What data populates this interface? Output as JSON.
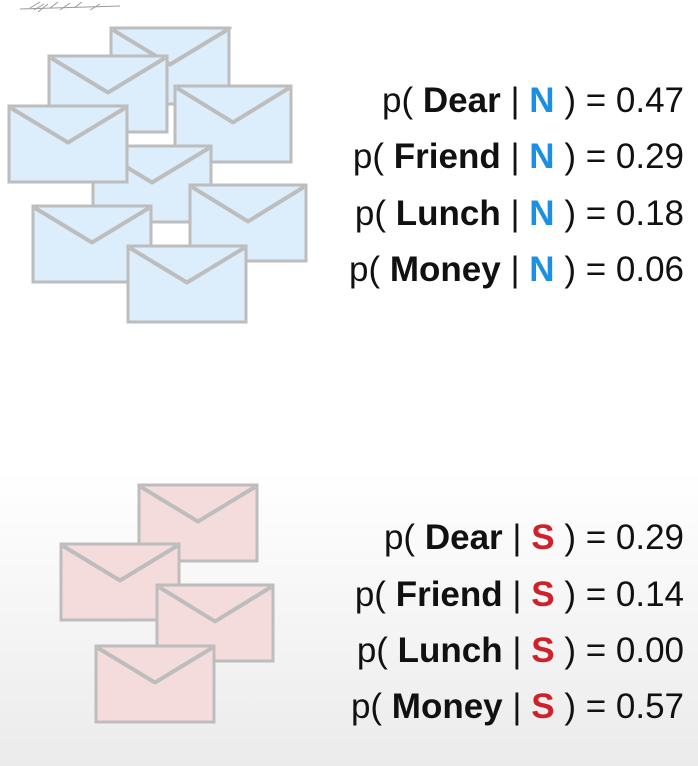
{
  "colors": {
    "normal_accent": "#1a8fe3",
    "spam_accent": "#d0202a",
    "normal_envelope_fill": "#dcedfb",
    "spam_envelope_fill": "#f5dcdc",
    "envelope_stroke": "#bdbdbd"
  },
  "icons": {
    "normal": "envelope-icon",
    "spam": "envelope-icon"
  },
  "normal": {
    "rows": [
      {
        "open": "p(",
        "word": "Dear",
        "sep": "|",
        "cls": "N",
        "close": ") =",
        "value": "0.47"
      },
      {
        "open": "p(",
        "word": "Friend",
        "sep": "|",
        "cls": "N",
        "close": ") =",
        "value": "0.29"
      },
      {
        "open": "p(",
        "word": "Lunch",
        "sep": "|",
        "cls": "N",
        "close": ") =",
        "value": "0.18"
      },
      {
        "open": "p(",
        "word": "Money",
        "sep": "|",
        "cls": "N",
        "close": ") =",
        "value": "0.06"
      }
    ]
  },
  "spam": {
    "rows": [
      {
        "open": "p(",
        "word": "Dear",
        "sep": "|",
        "cls": "S",
        "close": ") =",
        "value": "0.29"
      },
      {
        "open": "p(",
        "word": "Friend",
        "sep": "|",
        "cls": "S",
        "close": ") =",
        "value": "0.14"
      },
      {
        "open": "p(",
        "word": "Lunch",
        "sep": "|",
        "cls": "S",
        "close": ") =",
        "value": "0.00"
      },
      {
        "open": "p(",
        "word": "Money",
        "sep": "|",
        "cls": "S",
        "close": ") =",
        "value": "0.57"
      }
    ]
  }
}
